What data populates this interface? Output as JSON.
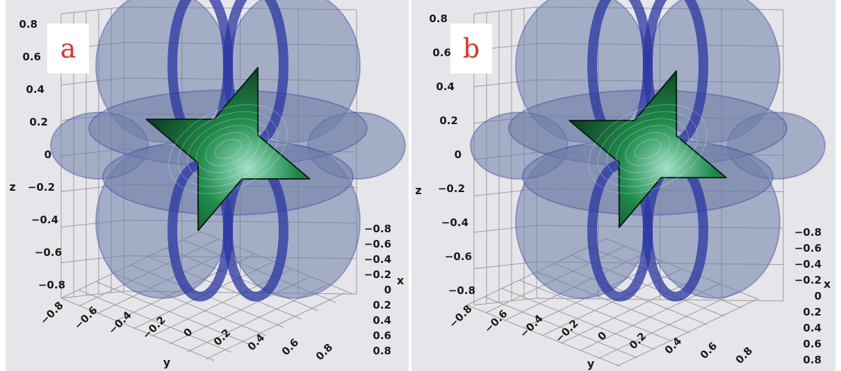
{
  "colors": {
    "background": "#e6e6ea",
    "outer_lobes": "#6e7ea8",
    "outer_lobe_edges": "#2a35a0",
    "inner_surface": "#1f8a4a",
    "inner_highlight": "#9fe0c8",
    "panel_label": "#d9342b",
    "grid": "#9a9a9a"
  },
  "chart_data": [
    {
      "type": "surface3d",
      "panel_label": "a",
      "xlabel": "x",
      "ylabel": "y",
      "zlabel": "z",
      "xlim": [
        -0.8,
        0.8
      ],
      "ylim": [
        -0.8,
        0.8
      ],
      "zlim": [
        -0.8,
        0.8
      ],
      "z_ticks": [
        "0.8",
        "0.6",
        "0.4",
        "0.2",
        "0",
        "−0.2",
        "−0.4",
        "−0.6",
        "−0.8"
      ],
      "y_ticks": [
        "−0.8",
        "−0.6",
        "−0.4",
        "−0.2",
        "0",
        "0.2",
        "0.4",
        "0.6",
        "0.8"
      ],
      "x_ticks": [
        "−0.8",
        "−0.6",
        "−0.4",
        "−0.2",
        "0",
        "0.2",
        "0.4",
        "0.6",
        "0.8"
      ],
      "grid": true,
      "surfaces": [
        "outer translucent lobed surface",
        "inner green four-point star surface"
      ]
    },
    {
      "type": "surface3d",
      "panel_label": "b",
      "xlabel": "x",
      "ylabel": "y",
      "zlabel": "z",
      "xlim": [
        -0.8,
        0.8
      ],
      "ylim": [
        -0.8,
        0.8
      ],
      "zlim": [
        -0.8,
        0.8
      ],
      "z_ticks": [
        "0.8",
        "0.6",
        "0.4",
        "0.2",
        "0",
        "−0.2",
        "−0.4",
        "−0.6",
        "−0.8"
      ],
      "y_ticks": [
        "−0.8",
        "−0.6",
        "−0.4",
        "−0.2",
        "0",
        "0.2",
        "0.4",
        "0.6",
        "0.8"
      ],
      "x_ticks": [
        "−0.8",
        "−0.6",
        "−0.4",
        "−0.2",
        "0",
        "0.2",
        "0.4",
        "0.6",
        "0.8"
      ],
      "grid": true,
      "surfaces": [
        "outer translucent lobed surface",
        "inner green four-point star surface"
      ]
    }
  ]
}
